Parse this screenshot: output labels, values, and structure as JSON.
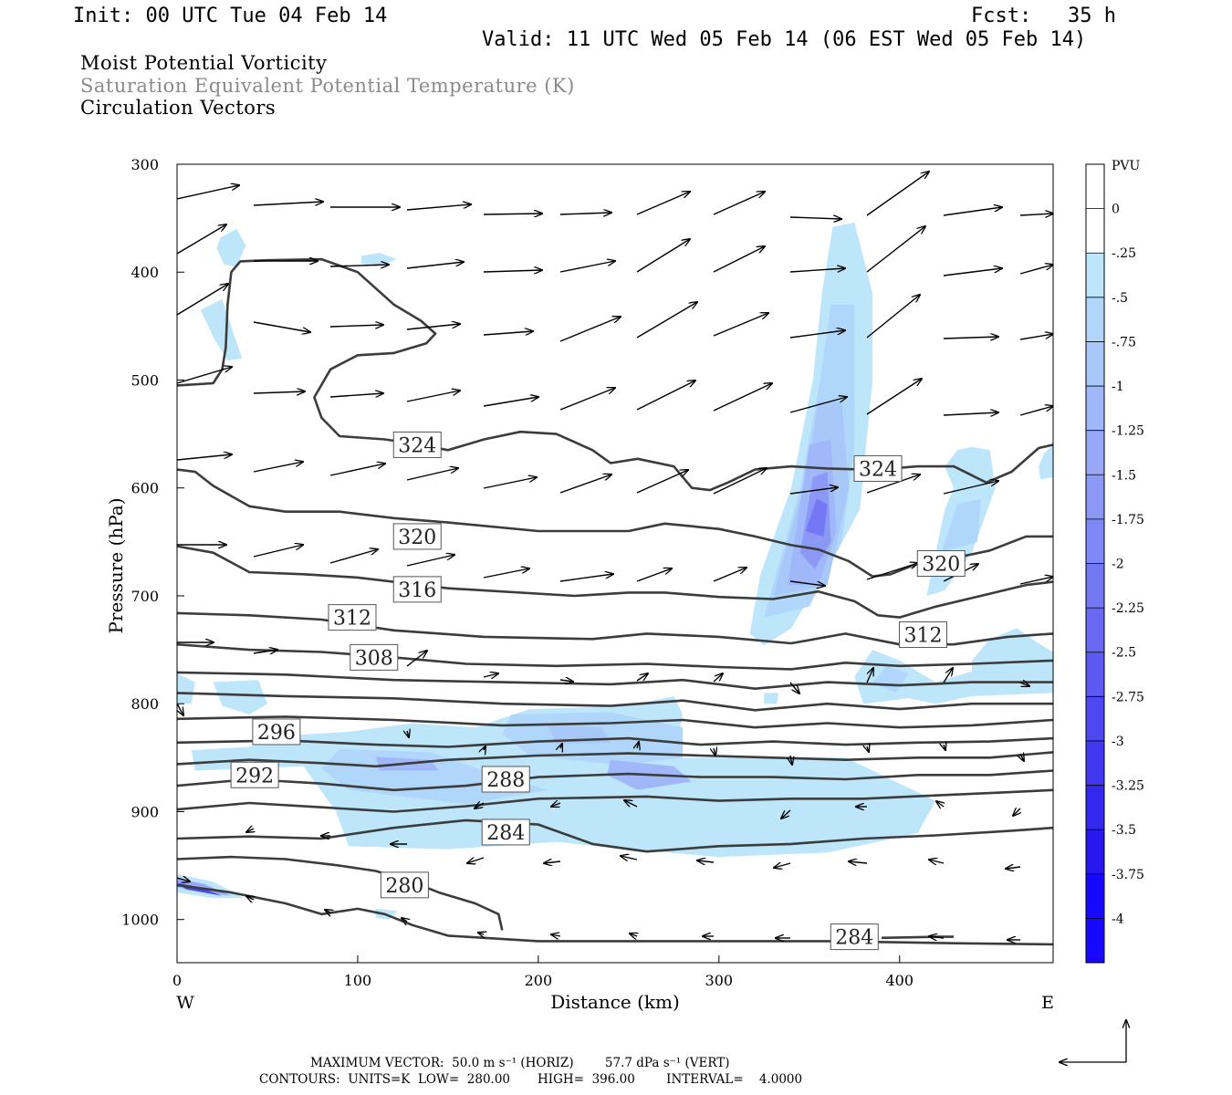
{
  "header": {
    "init": "Init: 00 UTC Tue 04 Feb 14",
    "fcst": "Fcst:   35 h",
    "valid": "Valid: 11 UTC Wed 05 Feb 14 (06 EST Wed 05 Feb 14)",
    "title1": "Moist Potential Vorticity",
    "title2": "Saturation Equivalent Potential Temperature (K)",
    "title3": "Circulation Vectors"
  },
  "footer": {
    "max_vector": "MAXIMUM VECTOR:  50.0 m s⁻¹ (HORIZ)        57.7 dPa s⁻¹ (VERT)",
    "contours": "CONTOURS:  UNITS=K  LOW=  280.00       HIGH=  396.00        INTERVAL=    4.0000"
  },
  "chart_data": {
    "type": "cross-section",
    "xlabel": "Distance (km)",
    "ylabel": "Pressure (hPa)",
    "x_range": [
      0,
      485
    ],
    "y_range": [
      300,
      1040
    ],
    "y_inverted": true,
    "x_ticks": [
      0,
      100,
      200,
      300,
      400
    ],
    "y_ticks": [
      300,
      400,
      500,
      600,
      700,
      800,
      900,
      1000
    ],
    "x_end_labels": {
      "left": "W",
      "right": "E"
    },
    "colorbar": {
      "unit": "PVU",
      "levels": [
        "0",
        "-.25",
        "-.5",
        "-.75",
        "-1",
        "-1.25",
        "-1.5",
        "-1.75",
        "-2",
        "-2.25",
        "-2.5",
        "-2.75",
        "-3",
        "-3.25",
        "-3.5",
        "-3.75",
        "-4"
      ],
      "colors": [
        "#ffffff",
        "#ffffff",
        "#bde6fb",
        "#b0d7fb",
        "#a8c8fa",
        "#a0b8f9",
        "#98a8f8",
        "#8c98f6",
        "#8088f5",
        "#7478f4",
        "#6868f3",
        "#5c58f2",
        "#4e48f1",
        "#4238f0",
        "#3428ef",
        "#2818ee",
        "#1808ff"
      ]
    },
    "contour_labels": [
      {
        "value": "324",
        "x": 133,
        "p": 560
      },
      {
        "value": "324",
        "x": 388,
        "p": 582
      },
      {
        "value": "320",
        "x": 133,
        "p": 645
      },
      {
        "value": "320",
        "x": 423,
        "p": 670
      },
      {
        "value": "316",
        "x": 133,
        "p": 694
      },
      {
        "value": "312",
        "x": 97,
        "p": 720
      },
      {
        "value": "312",
        "x": 413,
        "p": 736
      },
      {
        "value": "308",
        "x": 109,
        "p": 757
      },
      {
        "value": "296",
        "x": 55,
        "p": 826
      },
      {
        "value": "292",
        "x": 43,
        "p": 866
      },
      {
        "value": "288",
        "x": 182,
        "p": 870
      },
      {
        "value": "284",
        "x": 182,
        "p": 919
      },
      {
        "value": "280",
        "x": 126,
        "p": 968
      },
      {
        "value": "284",
        "x": 375,
        "p": 1016
      }
    ],
    "reference_vector_label": "MAXIMUM VECTOR"
  }
}
